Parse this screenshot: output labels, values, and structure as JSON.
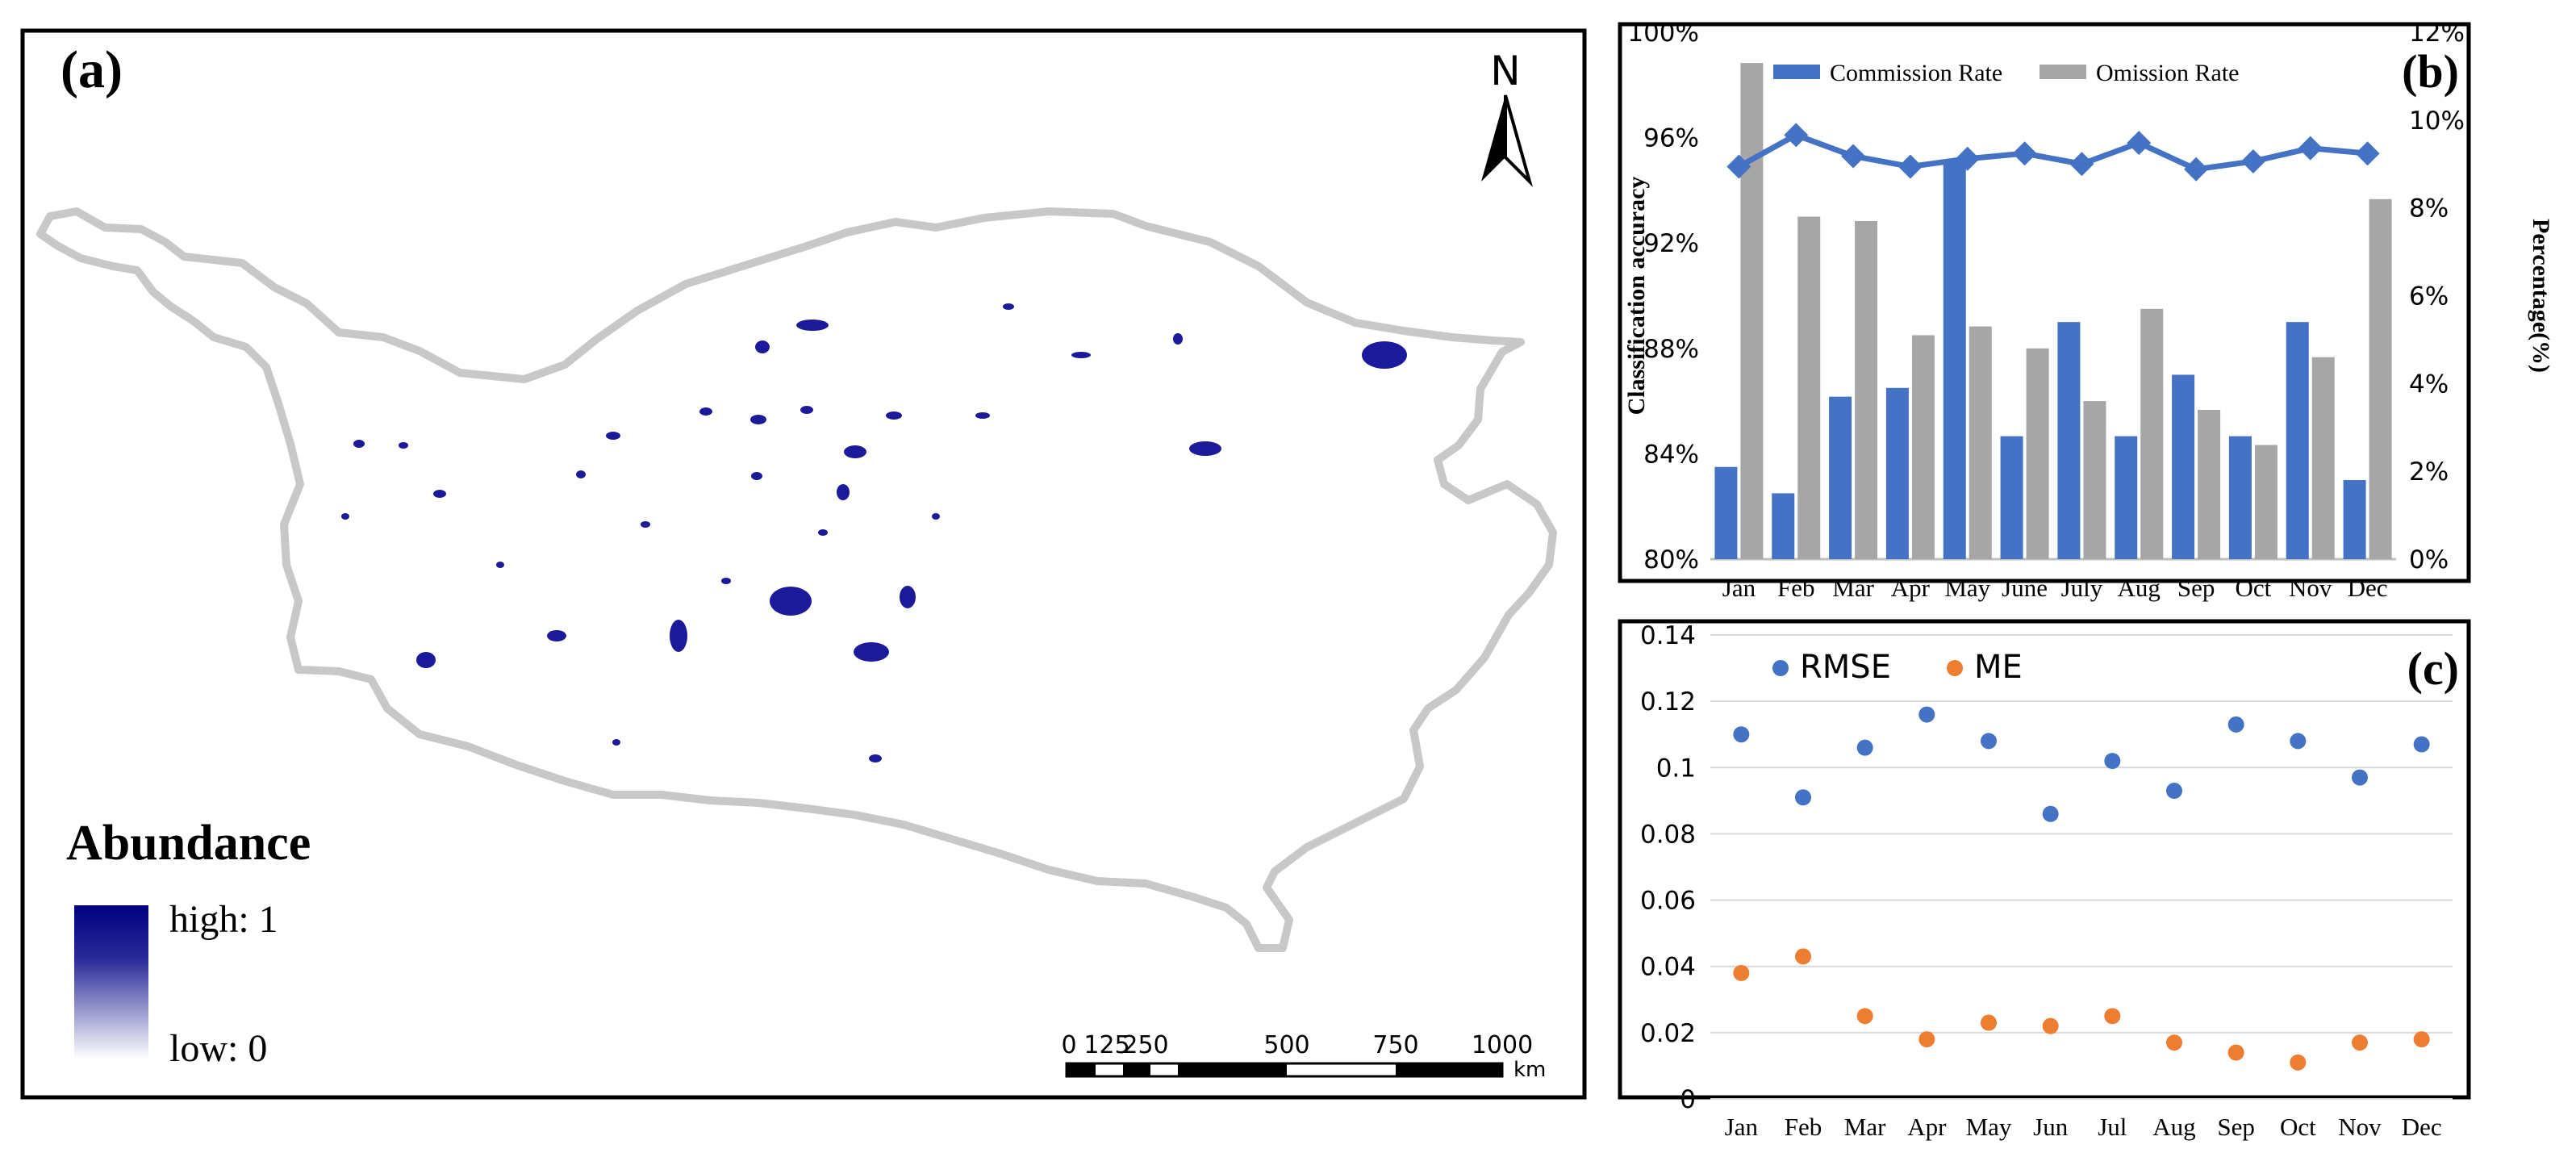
{
  "panel_a": {
    "label": "(a)",
    "north": "N",
    "legend": {
      "title": "Abundance",
      "high": "high: 1",
      "low": "low: 0",
      "color_high": "#000080",
      "color_low": "#ffffff"
    },
    "scale": {
      "ticks": [
        "0",
        "125",
        "250",
        "500",
        "750",
        "1000"
      ],
      "unit": "km"
    },
    "outline_color": "#c8c8c8",
    "water_color": "#1a1a9a"
  },
  "chart_data": [
    {
      "id": "b",
      "type": "bar",
      "label": "(b)",
      "categories": [
        "Jan",
        "Feb",
        "Mar",
        "Apr",
        "May",
        "June",
        "July",
        "Aug",
        "Sep",
        "Oct",
        "Nov",
        "Dec"
      ],
      "series": [
        {
          "name": "Commission Rate",
          "kind": "bar",
          "axis": "right",
          "color": "#4472c4",
          "values": [
            2.1,
            1.5,
            3.7,
            3.9,
            9.1,
            2.8,
            5.4,
            2.8,
            4.2,
            2.8,
            5.4,
            1.8
          ]
        },
        {
          "name": "Omission Rate",
          "kind": "bar",
          "axis": "right",
          "color": "#a6a6a6",
          "values": [
            11.3,
            7.8,
            7.7,
            5.1,
            5.3,
            4.8,
            3.6,
            5.7,
            3.4,
            2.6,
            4.6,
            8.2
          ]
        },
        {
          "name": "Classification accuracy",
          "kind": "line",
          "axis": "left",
          "color": "#4472c4",
          "legend": false,
          "values": [
            94.9,
            96.1,
            95.3,
            94.9,
            95.2,
            95.4,
            95.0,
            95.8,
            94.8,
            95.1,
            95.6,
            95.4
          ]
        }
      ],
      "ylabel": "Classification accuracy",
      "ylim": [
        80,
        100
      ],
      "yticks": [
        "80%",
        "84%",
        "88%",
        "92%",
        "96%",
        "100%"
      ],
      "y2label": "Percentage(%)",
      "y2lim": [
        0,
        12
      ],
      "y2ticks": [
        "0%",
        "2%",
        "4%",
        "6%",
        "8%",
        "10%",
        "12%"
      ],
      "grid": false,
      "legend": "top"
    },
    {
      "id": "c",
      "type": "scatter",
      "label": "(c)",
      "categories": [
        "Jan",
        "Feb",
        "Mar",
        "Apr",
        "May",
        "Jun",
        "Jul",
        "Aug",
        "Sep",
        "Oct",
        "Nov",
        "Dec"
      ],
      "series": [
        {
          "name": "RMSE",
          "color": "#4472c4",
          "values": [
            0.11,
            0.091,
            0.106,
            0.116,
            0.108,
            0.086,
            0.102,
            0.093,
            0.113,
            0.108,
            0.097,
            0.107
          ]
        },
        {
          "name": "ME",
          "color": "#ed7d31",
          "values": [
            0.038,
            0.043,
            0.025,
            0.018,
            0.023,
            0.022,
            0.025,
            0.017,
            0.014,
            0.011,
            0.017,
            0.018
          ]
        }
      ],
      "ylim": [
        0,
        0.14
      ],
      "yticks": [
        "0",
        "0.02",
        "0.04",
        "0.06",
        "0.08",
        "0.1",
        "0.12",
        "0.14"
      ],
      "grid": true,
      "legend": "top-left"
    }
  ]
}
